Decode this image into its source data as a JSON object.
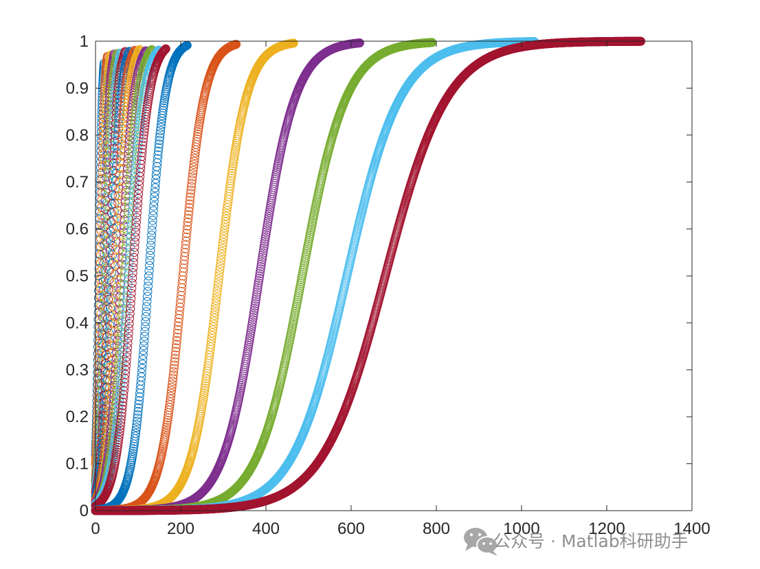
{
  "chart_data": {
    "type": "scatter",
    "marker": "circle",
    "xlim": [
      0,
      1400
    ],
    "ylim": [
      0,
      1
    ],
    "x_ticks": [
      0,
      200,
      400,
      600,
      800,
      1000,
      1200,
      1400
    ],
    "y_ticks": [
      0,
      0.1,
      0.2,
      0.3,
      0.4,
      0.5,
      0.6,
      0.7,
      0.8,
      0.9,
      1
    ],
    "grid": false,
    "legend": "none",
    "title": "",
    "xlabel": "",
    "ylabel": "",
    "series": [
      {
        "color": "#0072BD",
        "x_end": 20,
        "midpoint": 8,
        "width": 4
      },
      {
        "color": "#D95319",
        "x_end": 28,
        "midpoint": 11,
        "width": 5
      },
      {
        "color": "#EDB120",
        "x_end": 36,
        "midpoint": 15,
        "width": 6
      },
      {
        "color": "#7E2F8E",
        "x_end": 44,
        "midpoint": 19,
        "width": 7
      },
      {
        "color": "#77AC30",
        "x_end": 52,
        "midpoint": 23,
        "width": 8
      },
      {
        "color": "#4DBEEE",
        "x_end": 60,
        "midpoint": 27,
        "width": 9
      },
      {
        "color": "#A2142F",
        "x_end": 70,
        "midpoint": 32,
        "width": 10
      },
      {
        "color": "#0072BD",
        "x_end": 80,
        "midpoint": 38,
        "width": 11
      },
      {
        "color": "#D95319",
        "x_end": 92,
        "midpoint": 45,
        "width": 12
      },
      {
        "color": "#EDB120",
        "x_end": 104,
        "midpoint": 52,
        "width": 13
      },
      {
        "color": "#7E2F8E",
        "x_end": 118,
        "midpoint": 60,
        "width": 15
      },
      {
        "color": "#77AC30",
        "x_end": 132,
        "midpoint": 68,
        "width": 16
      },
      {
        "color": "#4DBEEE",
        "x_end": 148,
        "midpoint": 77,
        "width": 18
      },
      {
        "color": "#A2142F",
        "x_end": 165,
        "midpoint": 87,
        "width": 19
      },
      {
        "color": "#0072BD",
        "x_end": 215,
        "midpoint": 125,
        "width": 19
      },
      {
        "color": "#D95319",
        "x_end": 330,
        "midpoint": 205,
        "width": 25
      },
      {
        "color": "#EDB120",
        "x_end": 465,
        "midpoint": 290,
        "width": 32
      },
      {
        "color": "#7E2F8E",
        "x_end": 620,
        "midpoint": 385,
        "width": 42
      },
      {
        "color": "#77AC30",
        "x_end": 790,
        "midpoint": 485,
        "width": 52
      },
      {
        "color": "#4DBEEE",
        "x_end": 1030,
        "midpoint": 590,
        "width": 63
      },
      {
        "color": "#A2142F",
        "x_end": 1280,
        "midpoint": 680,
        "width": 73
      }
    ]
  },
  "watermark": {
    "text": "公众号 · Matlab科研助手",
    "icon": "wechat-icon"
  }
}
